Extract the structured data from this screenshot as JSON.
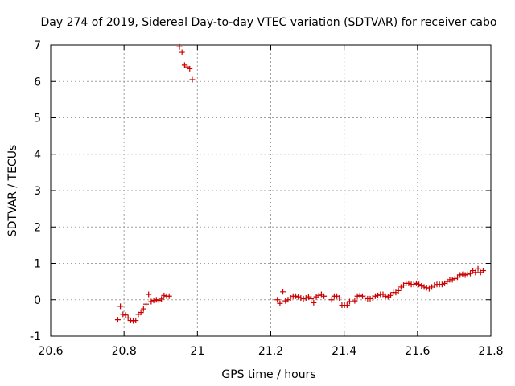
{
  "chart_data": {
    "type": "scatter",
    "title": "Day 274 of 2019, Sidereal Day-to-day VTEC variation (SDTVAR) for receiver cabo",
    "xlabel": "GPS time / hours",
    "ylabel": "SDTVAR / TECUs",
    "xlim": [
      20.6,
      21.8
    ],
    "ylim": [
      -1,
      7
    ],
    "xticks": [
      20.6,
      20.8,
      21,
      21.2,
      21.4,
      21.6,
      21.8
    ],
    "xtick_labels": [
      "20.6",
      "20.8",
      "21",
      "21.2",
      "21.4",
      "21.6",
      "21.8"
    ],
    "yticks": [
      -1,
      0,
      1,
      2,
      3,
      4,
      5,
      6,
      7
    ],
    "ytick_labels": [
      "-1",
      "0",
      "1",
      "2",
      "3",
      "4",
      "5",
      "6",
      "7"
    ],
    "grid": true,
    "marker": "+",
    "color": "#cc0000",
    "series": [
      {
        "x": [
          20.783,
          20.79,
          20.797,
          20.804,
          20.811,
          20.818,
          20.825,
          20.832,
          20.839,
          20.846,
          20.853,
          20.86,
          20.867,
          20.874,
          20.881,
          20.888,
          20.895,
          20.902,
          20.909,
          20.916,
          20.923,
          20.951,
          20.958,
          20.965,
          20.972,
          20.979,
          20.986,
          21.218,
          21.225,
          21.233,
          21.24,
          21.247,
          21.254,
          21.261,
          21.268,
          21.275,
          21.282,
          21.289,
          21.296,
          21.303,
          21.31,
          21.317,
          21.324,
          21.331,
          21.338,
          21.345,
          21.366,
          21.373,
          21.38,
          21.387,
          21.394,
          21.401,
          21.408,
          21.415,
          21.429,
          21.436,
          21.443,
          21.45,
          21.457,
          21.464,
          21.471,
          21.478,
          21.485,
          21.492,
          21.499,
          21.506,
          21.513,
          21.52,
          21.527,
          21.534,
          21.541,
          21.548,
          21.555,
          21.562,
          21.569,
          21.576,
          21.583,
          21.59,
          21.597,
          21.604,
          21.611,
          21.618,
          21.625,
          21.632,
          21.639,
          21.646,
          21.653,
          21.66,
          21.667,
          21.674,
          21.681,
          21.688,
          21.695,
          21.702,
          21.709,
          21.716,
          21.723,
          21.73,
          21.737,
          21.744,
          21.751,
          21.758,
          21.765,
          21.772,
          21.779
        ],
        "y": [
          -0.55,
          -0.18,
          -0.4,
          -0.42,
          -0.5,
          -0.57,
          -0.58,
          -0.57,
          -0.4,
          -0.35,
          -0.25,
          -0.12,
          0.15,
          -0.05,
          -0.02,
          0.0,
          -0.02,
          0.02,
          0.12,
          0.1,
          0.1,
          6.95,
          6.8,
          6.45,
          6.4,
          6.35,
          6.05,
          0.0,
          -0.1,
          0.22,
          -0.03,
          0.0,
          0.05,
          0.1,
          0.1,
          0.08,
          0.05,
          0.03,
          0.05,
          0.08,
          0.03,
          -0.08,
          0.08,
          0.12,
          0.15,
          0.1,
          0.0,
          0.1,
          0.1,
          0.05,
          -0.15,
          -0.15,
          -0.15,
          -0.05,
          -0.03,
          0.1,
          0.12,
          0.1,
          0.05,
          0.03,
          0.03,
          0.05,
          0.1,
          0.12,
          0.15,
          0.15,
          0.1,
          0.08,
          0.12,
          0.2,
          0.2,
          0.25,
          0.35,
          0.4,
          0.45,
          0.45,
          0.42,
          0.42,
          0.45,
          0.42,
          0.38,
          0.35,
          0.33,
          0.3,
          0.35,
          0.4,
          0.42,
          0.42,
          0.42,
          0.45,
          0.5,
          0.55,
          0.55,
          0.58,
          0.62,
          0.68,
          0.7,
          0.68,
          0.7,
          0.72,
          0.8,
          0.75,
          0.85,
          0.75,
          0.8
        ]
      }
    ]
  }
}
